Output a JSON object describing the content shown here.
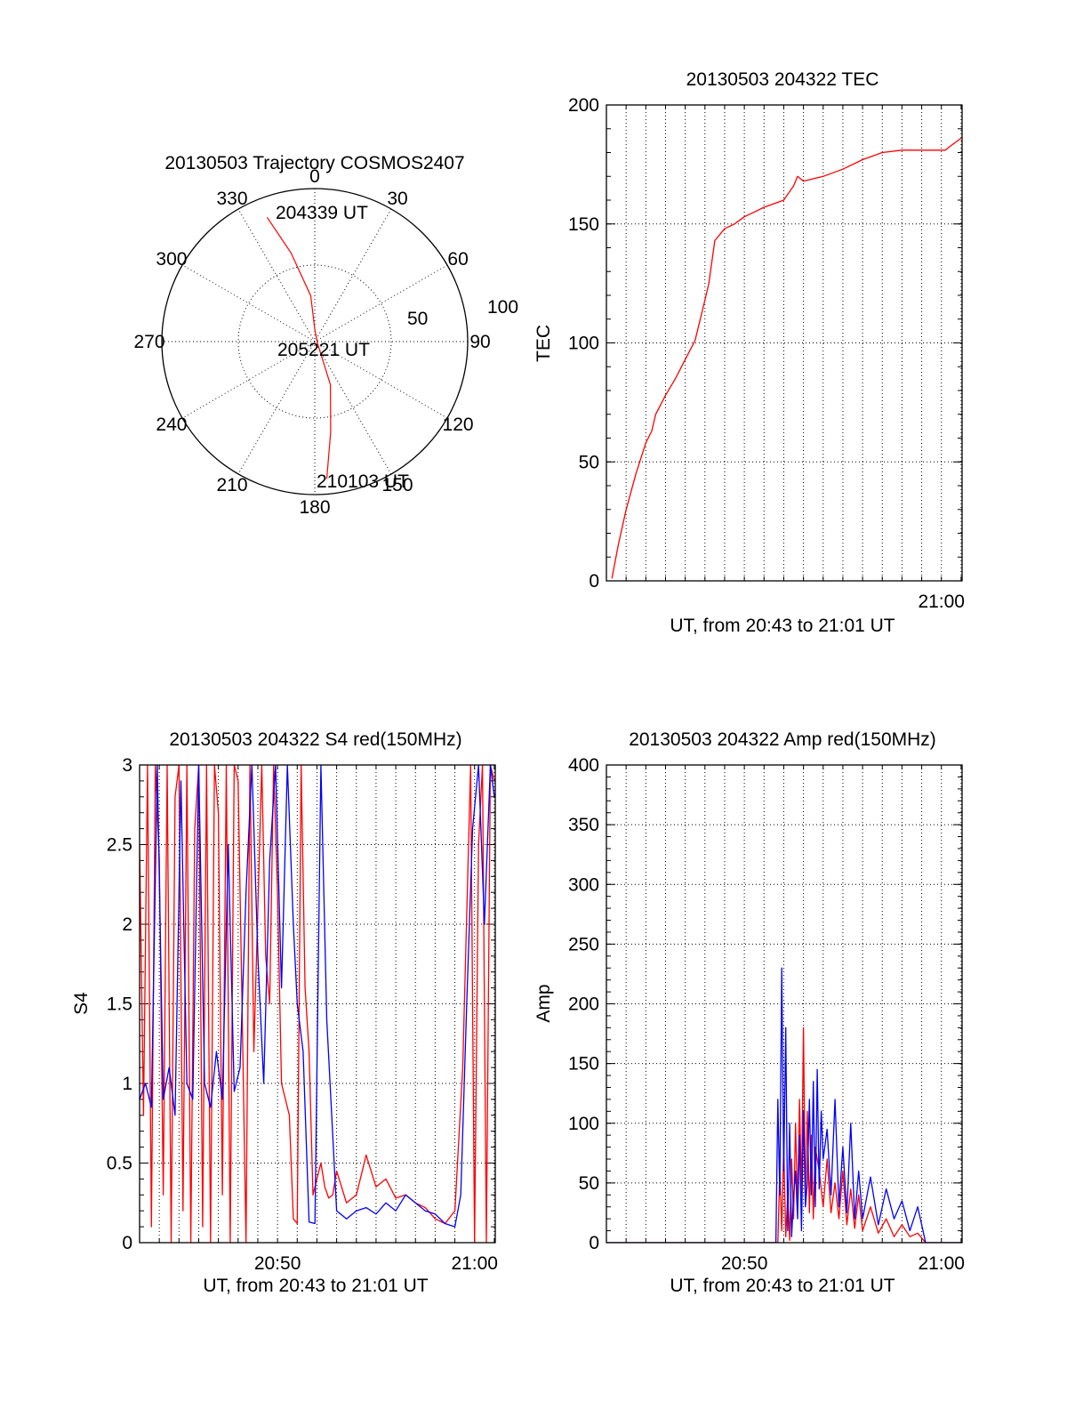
{
  "colors": {
    "red": "#ff0000",
    "blue": "#0000ff",
    "axis": "#000000"
  },
  "chart_data": [
    {
      "id": "polar",
      "type": "polar-trajectory",
      "title": "20130503 Trajectory COSMOS2407",
      "azimuth_labels": [
        "0",
        "30",
        "60",
        "90",
        "120",
        "150",
        "180",
        "210",
        "240",
        "270",
        "300",
        "330"
      ],
      "radial_labels": [
        "50",
        "100"
      ],
      "radial_values": [
        50,
        100
      ],
      "annotations": [
        "204339 UT",
        "205221 UT",
        "210103 UT"
      ],
      "trajectory": {
        "color": "red",
        "points": [
          [
            339,
            87
          ],
          [
            345,
            60
          ],
          [
            355,
            30
          ],
          [
            0,
            8
          ],
          [
            120,
            2
          ],
          [
            160,
            30
          ],
          [
            170,
            60
          ],
          [
            175,
            90
          ]
        ]
      }
    },
    {
      "id": "tec",
      "type": "line",
      "title": "20130503 204322 TEC",
      "ylabel": "TEC",
      "xlabel": "UT, from 20:43 to 21:01 UT",
      "xlim": [
        0,
        18.05
      ],
      "ylim": [
        0,
        200
      ],
      "yticks": [
        "0",
        "50",
        "100",
        "150",
        "200"
      ],
      "yticks_values": [
        0,
        50,
        100,
        150,
        200
      ],
      "xticks": [
        "21:00"
      ],
      "xticks_values": [
        17
      ],
      "series": [
        {
          "name": "TEC",
          "color": "red",
          "x": [
            0.28,
            0.6,
            1.0,
            1.5,
            2.0,
            2.3,
            2.5,
            3.0,
            3.5,
            4.0,
            4.5,
            5.0,
            5.2,
            5.5,
            6.0,
            6.5,
            7.0,
            7.5,
            8.0,
            9.0,
            9.5,
            9.7,
            10.0,
            11.0,
            12.0,
            13.0,
            14.0,
            15.0,
            16.0,
            16.8,
            17.2,
            17.5,
            18.0
          ],
          "y": [
            1,
            15,
            30,
            45,
            58,
            63,
            70,
            78,
            85,
            93,
            101,
            118,
            125,
            143,
            148,
            150,
            153,
            155,
            157,
            160,
            166,
            170,
            168,
            170,
            173,
            177,
            180,
            181,
            181,
            181,
            181,
            183,
            186
          ]
        }
      ]
    },
    {
      "id": "s4",
      "type": "line",
      "title": "20130503 204322 S4 red(150MHz)",
      "ylabel": "S4",
      "xlabel": "UT, from 20:43 to 21:01 UT",
      "xlim": [
        0,
        18.05
      ],
      "ylim": [
        0,
        3
      ],
      "yticks": [
        "0",
        "0.5",
        "1",
        "1.5",
        "2",
        "2.5",
        "3"
      ],
      "yticks_values": [
        0,
        0.5,
        1,
        1.5,
        2,
        2.5,
        3
      ],
      "xticks": [
        "20:50",
        "21:00"
      ],
      "xticks_values": [
        7,
        17
      ],
      "series": [
        {
          "name": "red(150MHz)",
          "color": "red",
          "x": [
            0.0,
            0.2,
            0.4,
            0.6,
            0.8,
            1.0,
            1.2,
            1.4,
            1.6,
            1.8,
            2.0,
            2.2,
            2.4,
            2.6,
            2.8,
            3.0,
            3.2,
            3.4,
            3.6,
            3.8,
            4.0,
            4.2,
            4.4,
            4.6,
            4.8,
            5.0,
            5.2,
            5.4,
            5.6,
            5.8,
            6.0,
            6.2,
            6.4,
            6.6,
            6.8,
            7.0,
            7.2,
            7.4,
            7.6,
            7.8,
            8.0,
            8.2,
            8.4,
            8.6,
            8.8,
            9.0,
            9.2,
            9.4,
            9.6,
            9.8,
            10.0,
            10.5,
            11.0,
            11.5,
            12.0,
            12.5,
            13.0,
            13.5,
            14.0,
            14.5,
            15.0,
            15.5,
            16.0,
            16.4,
            16.8,
            17.0,
            17.2,
            17.4,
            17.6,
            17.8,
            18.0
          ],
          "y": [
            2.5,
            0.8,
            3.0,
            0.1,
            3.0,
            2.4,
            0.3,
            3.0,
            0.0,
            2.8,
            3.0,
            0.2,
            3.0,
            0.0,
            2.6,
            3.0,
            0.1,
            3.0,
            0.0,
            3.0,
            2.7,
            0.3,
            3.0,
            0.0,
            3.0,
            2.9,
            1.5,
            0.0,
            3.0,
            1.2,
            2.1,
            3.0,
            1.8,
            1.5,
            3.0,
            2.2,
            1.0,
            0.9,
            0.8,
            0.15,
            0.12,
            3.0,
            1.6,
            1.2,
            0.3,
            0.4,
            0.5,
            0.35,
            0.28,
            0.3,
            0.45,
            0.25,
            0.3,
            0.55,
            0.35,
            0.4,
            0.28,
            0.3,
            0.25,
            0.22,
            0.15,
            0.12,
            0.2,
            1.1,
            3.0,
            0.0,
            2.5,
            3.0,
            0.0,
            3.0,
            2.9
          ]
        },
        {
          "name": "blue",
          "color": "blue",
          "x": [
            0.0,
            0.3,
            0.6,
            0.9,
            1.2,
            1.5,
            1.8,
            2.1,
            2.4,
            2.7,
            3.0,
            3.3,
            3.6,
            3.9,
            4.2,
            4.5,
            4.8,
            5.1,
            5.4,
            5.7,
            6.0,
            6.3,
            6.6,
            6.9,
            7.2,
            7.5,
            7.8,
            8.0,
            8.3,
            8.6,
            8.9,
            9.2,
            9.5,
            10.0,
            10.5,
            11.0,
            11.5,
            12.0,
            12.5,
            13.0,
            13.5,
            14.0,
            14.5,
            15.0,
            15.5,
            16.0,
            16.3,
            16.6,
            16.9,
            17.2,
            17.5,
            17.8,
            18.0
          ],
          "y": [
            0.9,
            1.0,
            0.85,
            3.0,
            0.9,
            1.1,
            0.8,
            2.9,
            1.0,
            0.9,
            3.0,
            1.0,
            0.85,
            1.2,
            0.9,
            2.5,
            0.95,
            1.1,
            2.2,
            3.0,
            1.8,
            1.0,
            2.4,
            3.0,
            1.6,
            3.0,
            2.0,
            1.5,
            1.2,
            0.13,
            0.12,
            3.0,
            1.4,
            0.2,
            0.15,
            0.2,
            0.22,
            0.18,
            0.25,
            0.2,
            0.3,
            0.25,
            0.2,
            0.18,
            0.12,
            0.1,
            0.3,
            1.5,
            2.6,
            3.0,
            2.0,
            3.0,
            2.8
          ]
        }
      ]
    },
    {
      "id": "amp",
      "type": "line",
      "title": "20130503 204322 Amp red(150MHz)",
      "ylabel": "Amp",
      "xlabel": "UT, from 20:43 to 21:01 UT",
      "xlim": [
        0,
        18.05
      ],
      "ylim": [
        0,
        400
      ],
      "yticks": [
        "0",
        "50",
        "100",
        "150",
        "200",
        "250",
        "300",
        "350",
        "400"
      ],
      "yticks_values": [
        0,
        50,
        100,
        150,
        200,
        250,
        300,
        350,
        400
      ],
      "xticks": [
        "20:50",
        "21:00"
      ],
      "xticks_values": [
        7,
        17
      ],
      "series": [
        {
          "name": "red(150MHz)",
          "color": "red",
          "x": [
            0.0,
            8.7,
            8.8,
            8.9,
            9.0,
            9.1,
            9.2,
            9.3,
            9.4,
            9.5,
            9.6,
            9.7,
            9.8,
            9.9,
            10.0,
            10.1,
            10.2,
            10.3,
            10.4,
            10.5,
            10.6,
            10.8,
            11.0,
            11.2,
            11.4,
            11.6,
            11.8,
            12.0,
            12.2,
            12.4,
            12.6,
            12.8,
            13.0,
            13.4,
            13.8,
            14.2,
            14.6,
            15.0,
            15.4,
            15.8,
            16.2,
            18.05
          ],
          "y": [
            0,
            0,
            60,
            10,
            80,
            5,
            40,
            2,
            70,
            20,
            100,
            30,
            120,
            40,
            180,
            35,
            110,
            25,
            90,
            20,
            80,
            60,
            30,
            70,
            25,
            50,
            20,
            60,
            15,
            45,
            12,
            40,
            10,
            30,
            8,
            20,
            5,
            15,
            5,
            8,
            0,
            0
          ]
        },
        {
          "name": "blue",
          "color": "blue",
          "x": [
            0.0,
            8.6,
            8.7,
            8.8,
            8.9,
            9.0,
            9.1,
            9.2,
            9.3,
            9.4,
            9.5,
            9.6,
            9.7,
            9.8,
            9.9,
            10.0,
            10.1,
            10.2,
            10.3,
            10.4,
            10.5,
            10.6,
            10.7,
            10.8,
            10.9,
            11.0,
            11.2,
            11.4,
            11.6,
            11.8,
            12.0,
            12.2,
            12.4,
            12.6,
            12.8,
            13.0,
            13.4,
            13.8,
            14.2,
            14.6,
            15.0,
            15.4,
            15.8,
            16.2,
            18.05
          ],
          "y": [
            0,
            0,
            120,
            40,
            230,
            60,
            180,
            10,
            100,
            5,
            40,
            60,
            20,
            90,
            10,
            110,
            30,
            50,
            120,
            40,
            135,
            30,
            145,
            45,
            110,
            70,
            95,
            40,
            120,
            30,
            80,
            25,
            100,
            20,
            60,
            20,
            55,
            15,
            45,
            20,
            35,
            10,
            30,
            0,
            0
          ]
        }
      ]
    }
  ]
}
